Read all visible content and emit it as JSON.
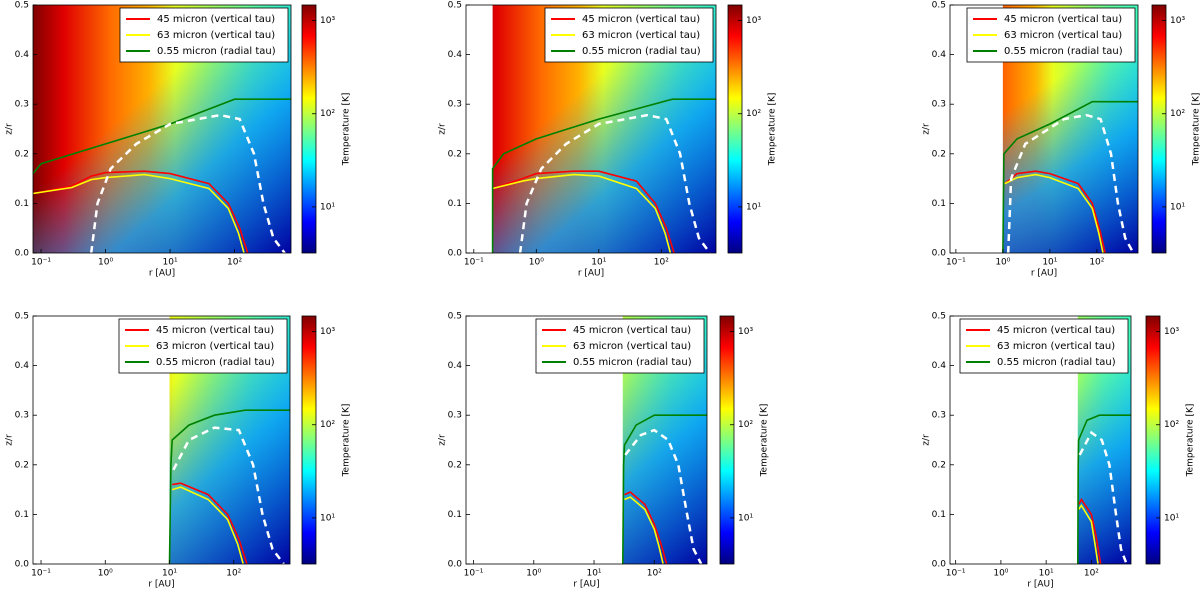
{
  "chart_data": [
    {
      "type": "heatmap",
      "xlabel": "r [AU]",
      "ylabel": "z/r",
      "xscale": "log",
      "xlim": [
        0.075,
        750
      ],
      "ylim": [
        0,
        0.5
      ],
      "xticks": [
        {
          "value": 0.1,
          "label": "10⁻¹"
        },
        {
          "value": 1,
          "label": "10⁰"
        },
        {
          "value": 10,
          "label": "10¹"
        },
        {
          "value": 100,
          "label": "10²"
        }
      ],
      "yticks": [
        {
          "value": 0,
          "label": "0.0"
        },
        0.1,
        0.2,
        0.3,
        0.4,
        0.5
      ],
      "legend": "upper right",
      "colorbar": {
        "label": "Temperature [K]",
        "scale": "log",
        "lim": [
          3.2,
          1470
        ],
        "ticks": [
          {
            "value": 10,
            "label": "10¹"
          },
          {
            "value": 100,
            "label": "10²"
          },
          {
            "value": 1000,
            "label": "10³"
          }
        ]
      },
      "series": [
        {
          "name": "45 micron (vertical tau)",
          "color": "#ff0000",
          "x": [
            0.075,
            0.3,
            0.6,
            1,
            4,
            10,
            40,
            80,
            120,
            160
          ],
          "values": [
            0.12,
            0.135,
            0.155,
            0.162,
            0.165,
            0.16,
            0.14,
            0.1,
            0.05,
            0
          ]
        },
        {
          "name": "63 micron (vertical tau)",
          "color": "#ffff00",
          "x": [
            0.075,
            0.3,
            0.6,
            1,
            4,
            10,
            40,
            80,
            115,
            140
          ],
          "values": [
            0.12,
            0.132,
            0.148,
            0.152,
            0.158,
            0.15,
            0.13,
            0.09,
            0.04,
            0
          ]
        },
        {
          "name": "0.55 micron (radial tau)",
          "color": "#008000",
          "x": [
            0.075,
            0.1,
            1,
            10,
            100,
            750
          ],
          "values": [
            0.16,
            0.18,
            0.22,
            0.26,
            0.31,
            0.31
          ]
        },
        {
          "color": "#ffffff",
          "dashed": true,
          "x": [
            0.6,
            0.75,
            1.2,
            3,
            10,
            60,
            120,
            200,
            280,
            400,
            600
          ],
          "values": [
            0,
            0.1,
            0.17,
            0.22,
            0.26,
            0.278,
            0.27,
            0.2,
            0.1,
            0.03,
            0
          ]
        }
      ]
    },
    {
      "type": "heatmap",
      "xlabel": "r [AU]",
      "ylabel": "z/r",
      "xscale": "log",
      "xlim": [
        0.075,
        750
      ],
      "ylim": [
        0,
        0.5
      ],
      "xticks": [
        {
          "value": 0.1,
          "label": "10⁻¹"
        },
        {
          "value": 1,
          "label": "10⁰"
        },
        {
          "value": 10,
          "label": "10¹"
        },
        {
          "value": 100,
          "label": "10²"
        }
      ],
      "yticks": [
        {
          "value": 0,
          "label": "0.0"
        },
        0.1,
        0.2,
        0.3,
        0.4,
        0.5
      ],
      "legend": "upper right",
      "colorbar": {
        "label": "Temperature [K]",
        "scale": "log",
        "lim": [
          3.2,
          1470
        ],
        "ticks": [
          {
            "value": 10,
            "label": "10¹"
          },
          {
            "value": 100,
            "label": "10²"
          },
          {
            "value": 1000,
            "label": "10³"
          }
        ]
      },
      "series": [
        {
          "name": "45 micron (vertical tau)",
          "color": "#ff0000",
          "x": [
            0.2,
            0.6,
            1,
            4,
            10,
            40,
            80,
            120,
            160
          ],
          "values": [
            0.13,
            0.15,
            0.16,
            0.165,
            0.165,
            0.145,
            0.1,
            0.05,
            0
          ]
        },
        {
          "name": "63 micron (vertical tau)",
          "color": "#ffff00",
          "x": [
            0.2,
            0.6,
            1,
            4,
            10,
            40,
            80,
            115,
            140
          ],
          "values": [
            0.13,
            0.145,
            0.15,
            0.158,
            0.155,
            0.13,
            0.09,
            0.04,
            0
          ]
        },
        {
          "name": "0.55 micron (radial tau)",
          "color": "#008000",
          "x": [
            0.2,
            0.2,
            0.3,
            1,
            10,
            150,
            750
          ],
          "values": [
            0,
            0.17,
            0.2,
            0.23,
            0.27,
            0.31,
            0.31
          ]
        },
        {
          "color": "#ffffff",
          "dashed": true,
          "x": [
            0.55,
            0.7,
            1.2,
            3,
            10,
            60,
            120,
            200,
            280,
            400,
            600
          ],
          "values": [
            0,
            0.1,
            0.17,
            0.22,
            0.26,
            0.278,
            0.27,
            0.2,
            0.1,
            0.03,
            0
          ]
        }
      ]
    },
    {
      "type": "heatmap",
      "xlabel": "r [AU]",
      "ylabel": "z/r",
      "xscale": "log",
      "xlim": [
        0.075,
        750
      ],
      "ylim": [
        0,
        0.5
      ],
      "xticks": [
        {
          "value": 0.1,
          "label": "10⁻¹"
        },
        {
          "value": 1,
          "label": "10⁰"
        },
        {
          "value": 10,
          "label": "10¹"
        },
        {
          "value": 100,
          "label": "10²"
        }
      ],
      "yticks": [
        {
          "value": 0,
          "label": "0.0"
        },
        0.1,
        0.2,
        0.3,
        0.4,
        0.5
      ],
      "legend": "upper right",
      "colorbar": {
        "label": "Temperature [K]",
        "scale": "log",
        "lim": [
          3.2,
          1470
        ],
        "ticks": [
          {
            "value": 10,
            "label": "10¹"
          },
          {
            "value": 100,
            "label": "10²"
          },
          {
            "value": 1000,
            "label": "10³"
          }
        ]
      },
      "series": [
        {
          "name": "45 micron (vertical tau)",
          "color": "#ff0000",
          "x": [
            1.1,
            2,
            5,
            10,
            40,
            80,
            120,
            150
          ],
          "values": [
            0.14,
            0.16,
            0.165,
            0.16,
            0.14,
            0.1,
            0.04,
            0
          ]
        },
        {
          "name": "63 micron (vertical tau)",
          "color": "#ffff00",
          "x": [
            1.1,
            2,
            5,
            10,
            40,
            80,
            110,
            135
          ],
          "values": [
            0.14,
            0.152,
            0.158,
            0.152,
            0.13,
            0.09,
            0.04,
            0
          ]
        },
        {
          "name": "0.55 micron (radial tau)",
          "color": "#008000",
          "x": [
            1,
            1.05,
            2,
            10,
            80,
            750
          ],
          "values": [
            0,
            0.2,
            0.23,
            0.26,
            0.305,
            0.305
          ]
        },
        {
          "color": "#ffffff",
          "dashed": true,
          "x": [
            1.3,
            1.5,
            3,
            20,
            60,
            120,
            200,
            280,
            400,
            600
          ],
          "values": [
            0,
            0.15,
            0.22,
            0.27,
            0.278,
            0.27,
            0.2,
            0.1,
            0.03,
            0
          ]
        }
      ]
    },
    {
      "type": "heatmap",
      "xlabel": "r [AU]",
      "ylabel": "z/r",
      "xscale": "log",
      "xlim": [
        0.075,
        750
      ],
      "ylim": [
        0,
        0.5
      ],
      "xticks": [
        {
          "value": 0.1,
          "label": "10⁻¹"
        },
        {
          "value": 1,
          "label": "10⁰"
        },
        {
          "value": 10,
          "label": "10¹"
        },
        {
          "value": 100,
          "label": "10²"
        }
      ],
      "yticks": [
        {
          "value": 0,
          "label": "0.0"
        },
        0.1,
        0.2,
        0.3,
        0.4,
        0.5
      ],
      "legend": "upper right",
      "colorbar": {
        "label": "Temperature [K]",
        "scale": "log",
        "lim": [
          3.2,
          1470
        ],
        "ticks": [
          {
            "value": 10,
            "label": "10¹"
          },
          {
            "value": 100,
            "label": "10²"
          },
          {
            "value": 1000,
            "label": "10³"
          }
        ]
      },
      "series": [
        {
          "name": "45 micron (vertical tau)",
          "color": "#ff0000",
          "x": [
            11,
            15,
            40,
            80,
            120,
            160
          ],
          "values": [
            0.16,
            0.163,
            0.14,
            0.1,
            0.05,
            0
          ]
        },
        {
          "name": "63 micron (vertical tau)",
          "color": "#ffff00",
          "x": [
            11,
            15,
            40,
            80,
            115,
            140
          ],
          "values": [
            0.15,
            0.155,
            0.13,
            0.09,
            0.04,
            0
          ]
        },
        {
          "name": "0.55 micron (radial tau)",
          "color": "#008000",
          "x": [
            10,
            10.5,
            11,
            20,
            50,
            150,
            750
          ],
          "values": [
            0,
            0.2,
            0.25,
            0.28,
            0.3,
            0.31,
            0.31
          ]
        },
        {
          "color": "#ffffff",
          "dashed": true,
          "x": [
            11.5,
            20,
            50,
            120,
            200,
            280,
            400,
            600
          ],
          "values": [
            0.19,
            0.25,
            0.275,
            0.27,
            0.2,
            0.1,
            0.03,
            0
          ]
        }
      ]
    },
    {
      "type": "heatmap",
      "xlabel": "r [AU]",
      "ylabel": "z/r",
      "xscale": "log",
      "xlim": [
        0.075,
        750
      ],
      "ylim": [
        0,
        0.5
      ],
      "xticks": [
        {
          "value": 0.1,
          "label": "10⁻¹"
        },
        {
          "value": 1,
          "label": "10⁰"
        },
        {
          "value": 10,
          "label": "10¹"
        },
        {
          "value": 100,
          "label": "10²"
        }
      ],
      "yticks": [
        {
          "value": 0,
          "label": "0.0"
        },
        0.1,
        0.2,
        0.3,
        0.4,
        0.5
      ],
      "legend": "upper right",
      "colorbar": {
        "label": "Temperature [K]",
        "scale": "log",
        "lim": [
          3.2,
          1470
        ],
        "ticks": [
          {
            "value": 10,
            "label": "10¹"
          },
          {
            "value": 100,
            "label": "10²"
          },
          {
            "value": 1000,
            "label": "10³"
          }
        ]
      },
      "series": [
        {
          "name": "45 micron (vertical tau)",
          "color": "#ff0000",
          "x": [
            32,
            40,
            70,
            100,
            130,
            160
          ],
          "values": [
            0.14,
            0.145,
            0.12,
            0.08,
            0.04,
            0
          ]
        },
        {
          "name": "63 micron (vertical tau)",
          "color": "#ffff00",
          "x": [
            32,
            40,
            70,
            100,
            120,
            140
          ],
          "values": [
            0.13,
            0.135,
            0.11,
            0.07,
            0.035,
            0
          ]
        },
        {
          "name": "0.55 micron (radial tau)",
          "color": "#008000",
          "x": [
            30,
            31,
            32,
            50,
            100,
            750
          ],
          "values": [
            0,
            0.2,
            0.24,
            0.28,
            0.3,
            0.3
          ]
        },
        {
          "color": "#ffffff",
          "dashed": true,
          "x": [
            33,
            60,
            100,
            170,
            250,
            350,
            450,
            600
          ],
          "values": [
            0.22,
            0.26,
            0.27,
            0.25,
            0.2,
            0.1,
            0.03,
            0
          ]
        }
      ]
    },
    {
      "type": "heatmap",
      "xlabel": "r [AU]",
      "ylabel": "z/r",
      "xscale": "log",
      "xlim": [
        0.075,
        750
      ],
      "ylim": [
        0,
        0.5
      ],
      "xticks": [
        {
          "value": 0.1,
          "label": "10⁻¹"
        },
        {
          "value": 1,
          "label": "10⁰"
        },
        {
          "value": 10,
          "label": "10¹"
        },
        {
          "value": 100,
          "label": "10²"
        }
      ],
      "yticks": [
        {
          "value": 0,
          "label": "0.0"
        },
        0.1,
        0.2,
        0.3,
        0.4,
        0.5
      ],
      "legend": "upper right",
      "colorbar": {
        "label": "Temperature [K]",
        "scale": "log",
        "lim": [
          3.2,
          1470
        ],
        "ticks": [
          {
            "value": 10,
            "label": "10¹"
          },
          {
            "value": 100,
            "label": "10²"
          },
          {
            "value": 1000,
            "label": "10³"
          }
        ]
      },
      "series": [
        {
          "name": "45 micron (vertical tau)",
          "color": "#ff0000",
          "x": [
            52,
            60,
            100,
            130,
            160
          ],
          "values": [
            0.12,
            0.13,
            0.1,
            0.05,
            0
          ]
        },
        {
          "name": "63 micron (vertical tau)",
          "color": "#ffff00",
          "x": [
            52,
            60,
            100,
            120,
            140
          ],
          "values": [
            0.11,
            0.118,
            0.085,
            0.04,
            0
          ]
        },
        {
          "name": "0.55 micron (radial tau)",
          "color": "#008000",
          "x": [
            50,
            51,
            52,
            80,
            150,
            750
          ],
          "values": [
            0,
            0.2,
            0.25,
            0.29,
            0.3,
            0.3
          ]
        },
        {
          "color": "#ffffff",
          "dashed": true,
          "x": [
            55,
            100,
            170,
            250,
            350,
            450,
            600
          ],
          "values": [
            0.22,
            0.265,
            0.25,
            0.2,
            0.1,
            0.03,
            0
          ]
        }
      ]
    }
  ]
}
